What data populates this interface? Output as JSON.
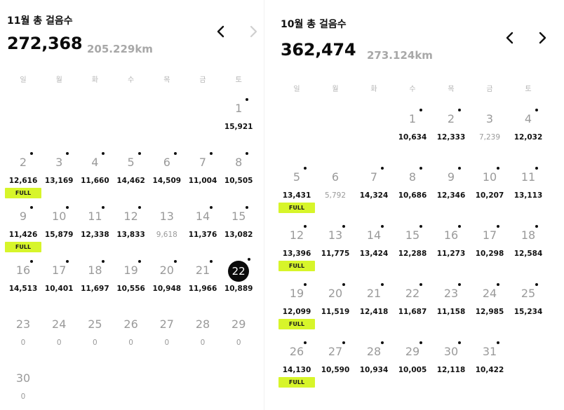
{
  "weekday_labels": [
    "일",
    "월",
    "화",
    "수",
    "목",
    "금",
    "토"
  ],
  "badge_label": "FULL",
  "november": {
    "title": "11월 총 걸음수",
    "total_steps": "272,368",
    "total_distance": "205.229km",
    "prev_icon": "chevron-left-icon",
    "next_icon": "chevron-right-icon",
    "next_disabled": true,
    "days": [
      {
        "day": "1",
        "steps": "15,921",
        "dot": true,
        "full": false,
        "today": false,
        "low": false
      },
      {
        "day": "2",
        "steps": "12,616",
        "dot": true,
        "full": true,
        "today": false,
        "low": false
      },
      {
        "day": "3",
        "steps": "13,169",
        "dot": true,
        "full": false,
        "today": false,
        "low": false
      },
      {
        "day": "4",
        "steps": "11,660",
        "dot": true,
        "full": false,
        "today": false,
        "low": false
      },
      {
        "day": "5",
        "steps": "14,462",
        "dot": true,
        "full": false,
        "today": false,
        "low": false
      },
      {
        "day": "6",
        "steps": "14,509",
        "dot": true,
        "full": false,
        "today": false,
        "low": false
      },
      {
        "day": "7",
        "steps": "11,004",
        "dot": true,
        "full": false,
        "today": false,
        "low": false
      },
      {
        "day": "8",
        "steps": "10,505",
        "dot": true,
        "full": false,
        "today": false,
        "low": false
      },
      {
        "day": "9",
        "steps": "11,426",
        "dot": true,
        "full": true,
        "today": false,
        "low": false
      },
      {
        "day": "10",
        "steps": "15,879",
        "dot": true,
        "full": false,
        "today": false,
        "low": false
      },
      {
        "day": "11",
        "steps": "12,338",
        "dot": true,
        "full": false,
        "today": false,
        "low": false
      },
      {
        "day": "12",
        "steps": "13,833",
        "dot": true,
        "full": false,
        "today": false,
        "low": false
      },
      {
        "day": "13",
        "steps": "9,618",
        "dot": false,
        "full": false,
        "today": false,
        "low": true
      },
      {
        "day": "14",
        "steps": "11,376",
        "dot": true,
        "full": false,
        "today": false,
        "low": false
      },
      {
        "day": "15",
        "steps": "13,082",
        "dot": true,
        "full": false,
        "today": false,
        "low": false
      },
      {
        "day": "16",
        "steps": "14,513",
        "dot": true,
        "full": false,
        "today": false,
        "low": false
      },
      {
        "day": "17",
        "steps": "10,401",
        "dot": true,
        "full": false,
        "today": false,
        "low": false
      },
      {
        "day": "18",
        "steps": "11,697",
        "dot": true,
        "full": false,
        "today": false,
        "low": false
      },
      {
        "day": "19",
        "steps": "10,556",
        "dot": true,
        "full": false,
        "today": false,
        "low": false
      },
      {
        "day": "20",
        "steps": "10,948",
        "dot": true,
        "full": false,
        "today": false,
        "low": false
      },
      {
        "day": "21",
        "steps": "11,966",
        "dot": true,
        "full": false,
        "today": false,
        "low": false
      },
      {
        "day": "22",
        "steps": "10,889",
        "dot": true,
        "full": false,
        "today": true,
        "low": false
      },
      {
        "day": "23",
        "steps": "0",
        "dot": false,
        "full": false,
        "today": false,
        "low": true
      },
      {
        "day": "24",
        "steps": "0",
        "dot": false,
        "full": false,
        "today": false,
        "low": true
      },
      {
        "day": "25",
        "steps": "0",
        "dot": false,
        "full": false,
        "today": false,
        "low": true
      },
      {
        "day": "26",
        "steps": "0",
        "dot": false,
        "full": false,
        "today": false,
        "low": true
      },
      {
        "day": "27",
        "steps": "0",
        "dot": false,
        "full": false,
        "today": false,
        "low": true
      },
      {
        "day": "28",
        "steps": "0",
        "dot": false,
        "full": false,
        "today": false,
        "low": true
      },
      {
        "day": "29",
        "steps": "0",
        "dot": false,
        "full": false,
        "today": false,
        "low": true
      },
      {
        "day": "30",
        "steps": "0",
        "dot": false,
        "full": false,
        "today": false,
        "low": true
      }
    ]
  },
  "october": {
    "title": "10월 총 걸음수",
    "total_steps": "362,474",
    "total_distance": "273.124km",
    "prev_icon": "chevron-left-icon",
    "next_icon": "chevron-right-icon",
    "next_disabled": false,
    "days": [
      {
        "day": "1",
        "steps": "10,634",
        "dot": true,
        "full": false,
        "today": false,
        "low": false
      },
      {
        "day": "2",
        "steps": "12,333",
        "dot": true,
        "full": false,
        "today": false,
        "low": false
      },
      {
        "day": "3",
        "steps": "7,239",
        "dot": false,
        "full": false,
        "today": false,
        "low": true
      },
      {
        "day": "4",
        "steps": "12,032",
        "dot": true,
        "full": false,
        "today": false,
        "low": false
      },
      {
        "day": "5",
        "steps": "13,431",
        "dot": true,
        "full": true,
        "today": false,
        "low": false
      },
      {
        "day": "6",
        "steps": "5,792",
        "dot": false,
        "full": false,
        "today": false,
        "low": true
      },
      {
        "day": "7",
        "steps": "14,324",
        "dot": true,
        "full": false,
        "today": false,
        "low": false
      },
      {
        "day": "8",
        "steps": "10,686",
        "dot": true,
        "full": false,
        "today": false,
        "low": false
      },
      {
        "day": "9",
        "steps": "12,346",
        "dot": true,
        "full": false,
        "today": false,
        "low": false
      },
      {
        "day": "10",
        "steps": "10,207",
        "dot": true,
        "full": false,
        "today": false,
        "low": false
      },
      {
        "day": "11",
        "steps": "13,113",
        "dot": true,
        "full": false,
        "today": false,
        "low": false
      },
      {
        "day": "12",
        "steps": "13,396",
        "dot": true,
        "full": true,
        "today": false,
        "low": false
      },
      {
        "day": "13",
        "steps": "11,775",
        "dot": true,
        "full": false,
        "today": false,
        "low": false
      },
      {
        "day": "14",
        "steps": "13,424",
        "dot": true,
        "full": false,
        "today": false,
        "low": false
      },
      {
        "day": "15",
        "steps": "12,288",
        "dot": true,
        "full": false,
        "today": false,
        "low": false
      },
      {
        "day": "16",
        "steps": "11,273",
        "dot": true,
        "full": false,
        "today": false,
        "low": false
      },
      {
        "day": "17",
        "steps": "10,298",
        "dot": true,
        "full": false,
        "today": false,
        "low": false
      },
      {
        "day": "18",
        "steps": "12,584",
        "dot": true,
        "full": false,
        "today": false,
        "low": false
      },
      {
        "day": "19",
        "steps": "12,099",
        "dot": true,
        "full": true,
        "today": false,
        "low": false
      },
      {
        "day": "20",
        "steps": "11,519",
        "dot": true,
        "full": false,
        "today": false,
        "low": false
      },
      {
        "day": "21",
        "steps": "12,418",
        "dot": true,
        "full": false,
        "today": false,
        "low": false
      },
      {
        "day": "22",
        "steps": "11,687",
        "dot": true,
        "full": false,
        "today": false,
        "low": false
      },
      {
        "day": "23",
        "steps": "11,158",
        "dot": true,
        "full": false,
        "today": false,
        "low": false
      },
      {
        "day": "24",
        "steps": "12,985",
        "dot": true,
        "full": false,
        "today": false,
        "low": false
      },
      {
        "day": "25",
        "steps": "15,234",
        "dot": true,
        "full": false,
        "today": false,
        "low": false
      },
      {
        "day": "26",
        "steps": "14,130",
        "dot": true,
        "full": true,
        "today": false,
        "low": false
      },
      {
        "day": "27",
        "steps": "10,590",
        "dot": true,
        "full": false,
        "today": false,
        "low": false
      },
      {
        "day": "28",
        "steps": "10,934",
        "dot": true,
        "full": false,
        "today": false,
        "low": false
      },
      {
        "day": "29",
        "steps": "10,005",
        "dot": true,
        "full": false,
        "today": false,
        "low": false
      },
      {
        "day": "30",
        "steps": "12,118",
        "dot": true,
        "full": false,
        "today": false,
        "low": false
      },
      {
        "day": "31",
        "steps": "10,422",
        "dot": true,
        "full": false,
        "today": false,
        "low": false
      }
    ]
  },
  "colors": {
    "badge": "#d7f52a",
    "today": "#0b0b0b",
    "muted": "#9a9a9a",
    "text": "#111111"
  }
}
